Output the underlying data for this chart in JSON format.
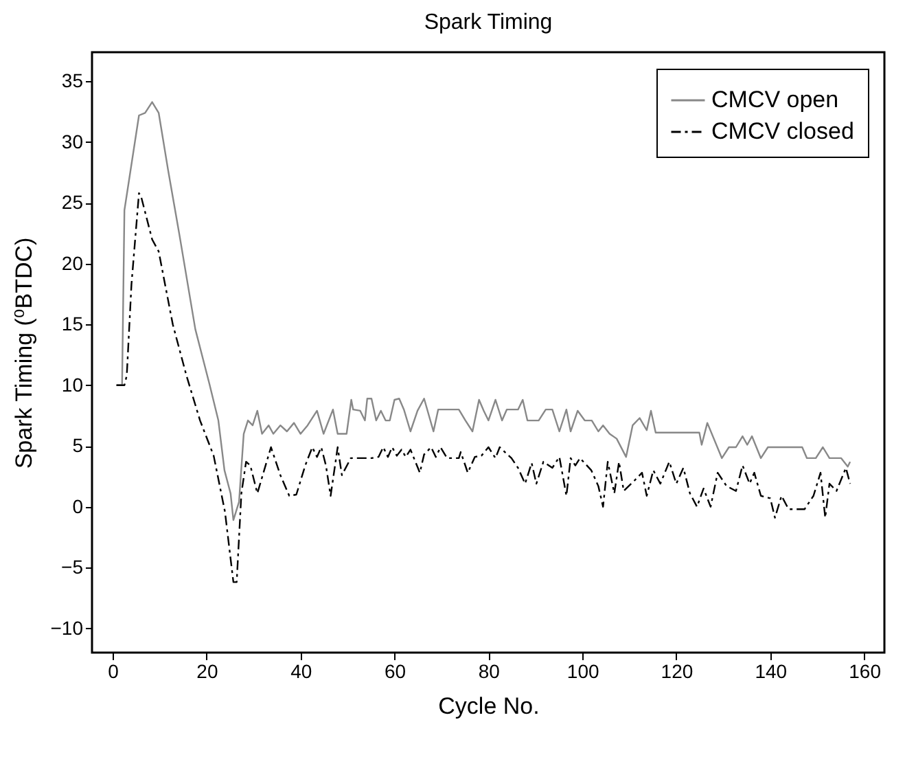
{
  "chart_data": {
    "type": "line",
    "title": "Spark Timing",
    "xlabel": "Cycle No.",
    "ylabel": "Spark Timing (⁰BTDC)",
    "xlim": [
      -4.4,
      164.3
    ],
    "ylim": [
      -12,
      37.4
    ],
    "xticks": [
      0,
      20,
      40,
      60,
      80,
      100,
      120,
      140,
      160
    ],
    "yticks": [
      -10,
      -5,
      0,
      5,
      10,
      15,
      20,
      25,
      30,
      35
    ],
    "grid": false,
    "legend": "top right",
    "marker": "none",
    "series": [
      {
        "name": "CMCV open",
        "color": "#888888",
        "line_style": "solid",
        "x": [
          0.8,
          2,
          2.5,
          5.6,
          6.9,
          8.4,
          9.8,
          11.8,
          14.2,
          17.6,
          20.6,
          22.5,
          23.8,
          25.1,
          25.7,
          26.9,
          27.9,
          28.8,
          29.8,
          30.8,
          31.8,
          33.2,
          34.2,
          35.7,
          37.1,
          38.6,
          40,
          41.5,
          43.5,
          44.9,
          46.9,
          47.9,
          49.8,
          50.8,
          51.2,
          52.7,
          53.7,
          54.2,
          55.1,
          56.1,
          57.1,
          58.1,
          59,
          60,
          61,
          62,
          63.4,
          64.9,
          66.3,
          68.3,
          69.3,
          73.7,
          75.1,
          76.6,
          78,
          79,
          80,
          81.5,
          82.9,
          83.9,
          86.3,
          87.3,
          88.3,
          90.7,
          92.2,
          93.6,
          95.1,
          96.6,
          97.5,
          99,
          100.5,
          102,
          103.4,
          104.4,
          105.8,
          107.3,
          109.3,
          110.7,
          112.2,
          113.7,
          114.6,
          115.6,
          124.9,
          125.4,
          126.6,
          129.7,
          131.2,
          132.7,
          134.1,
          135.1,
          136.1,
          138,
          139.5,
          146.8,
          147.8,
          149.7,
          151.2,
          152.6,
          155.1,
          156.5,
          157
        ],
        "values": [
          10,
          10,
          24.4,
          32.2,
          32.4,
          33.3,
          32.4,
          27.7,
          22.4,
          14.6,
          10.1,
          7.1,
          3,
          1.1,
          -1.1,
          0.4,
          6,
          7.1,
          6.7,
          7.9,
          6,
          6.7,
          6,
          6.7,
          6.2,
          6.9,
          6,
          6.7,
          7.9,
          6,
          8,
          6,
          6,
          8.8,
          8,
          7.9,
          7.1,
          8.9,
          8.9,
          7.1,
          7.9,
          7.1,
          7.1,
          8.8,
          8.9,
          8,
          6.2,
          7.9,
          8.9,
          6.2,
          8,
          8,
          7.1,
          6.2,
          8.8,
          7.9,
          7.1,
          8.8,
          7.1,
          8,
          8,
          8.8,
          7.1,
          7.1,
          8,
          8,
          6.2,
          8,
          6.2,
          7.9,
          7.1,
          7.1,
          6.2,
          6.7,
          6,
          5.6,
          4.1,
          6.7,
          7.3,
          6.3,
          7.9,
          6.1,
          6.1,
          5.1,
          6.9,
          4,
          4.9,
          4.9,
          5.8,
          5.1,
          5.8,
          4,
          4.9,
          4.9,
          4,
          4,
          4.9,
          4,
          4,
          3.3,
          3.7
        ]
      },
      {
        "name": "CMCV closed",
        "color": "#000000",
        "line_style": "dashed",
        "x": [
          0.8,
          2.5,
          3,
          4,
          5.6,
          6,
          8.4,
          9.8,
          12.8,
          15.7,
          18.6,
          21.5,
          23.9,
          25.7,
          26.4,
          27.4,
          28.4,
          29.3,
          30.8,
          33.7,
          35.7,
          37.6,
          39.1,
          41,
          42.5,
          43.5,
          44.4,
          45.4,
          46.4,
          47.9,
          48.8,
          50.7,
          55.1,
          56.6,
          57.6,
          58.6,
          59.5,
          60.5,
          61.5,
          62.4,
          63.4,
          65.4,
          66.3,
          67.8,
          68.8,
          69.8,
          71.2,
          73.7,
          74.1,
          75.6,
          77.1,
          78.5,
          80,
          81.5,
          82.4,
          84.9,
          86.3,
          87.8,
          89.2,
          90.2,
          91.7,
          93.6,
          95.1,
          96.6,
          97.5,
          98.5,
          99.5,
          101.9,
          103.4,
          104.4,
          105.4,
          106.8,
          107.8,
          108.8,
          111.2,
          112.7,
          113.7,
          115.1,
          116.6,
          118.5,
          120,
          121.5,
          122.9,
          124.4,
          125.8,
          127.3,
          128.8,
          130.7,
          132.7,
          134.1,
          135.6,
          136.6,
          138,
          140,
          141,
          142.4,
          143.9,
          147.3,
          149.2,
          150.7,
          151.7,
          152.6,
          154.1,
          156.1,
          157
        ],
        "values": [
          10,
          10,
          10.8,
          18.3,
          25.8,
          25.6,
          22,
          21,
          15,
          10.8,
          7.1,
          4.2,
          -0.4,
          -6.2,
          -6.2,
          1.1,
          3.7,
          3.4,
          1.1,
          4.9,
          2.6,
          0.9,
          1,
          3.4,
          4.9,
          4.1,
          4.9,
          3.4,
          0.9,
          4.9,
          2.6,
          4,
          4,
          4.1,
          4.9,
          4.1,
          4.9,
          4.2,
          4.7,
          4.1,
          4.7,
          2.8,
          4.3,
          4.9,
          4.1,
          4.9,
          4,
          4,
          4.5,
          2.8,
          4.1,
          4.2,
          4.9,
          4,
          4.9,
          4,
          3.2,
          1.9,
          3.6,
          1.9,
          3.7,
          3.2,
          4.1,
          0.9,
          4,
          3.4,
          4,
          3,
          1.7,
          0,
          3.7,
          1.1,
          3.7,
          1.3,
          2.2,
          2.8,
          0.9,
          3,
          1.9,
          3.7,
          1.9,
          3.2,
          1.1,
          0,
          1.5,
          0,
          2.8,
          1.7,
          1.3,
          3.4,
          1.9,
          2.8,
          0.9,
          0.7,
          -0.9,
          0.9,
          -0.2,
          -0.2,
          0.9,
          2.8,
          -0.9,
          1.9,
          1.3,
          3.2,
          1.9
        ]
      }
    ]
  }
}
